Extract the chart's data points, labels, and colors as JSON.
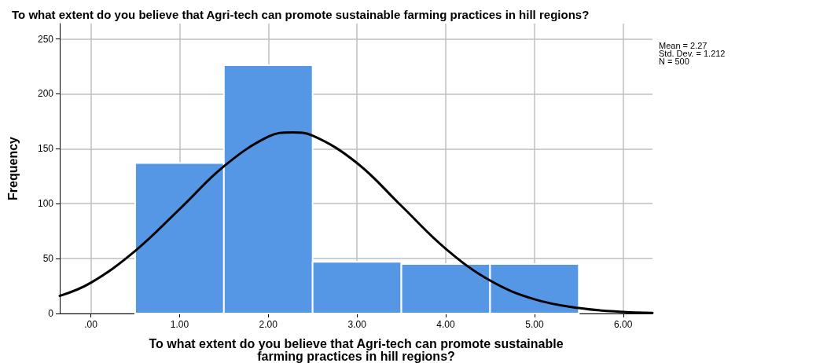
{
  "chart_data": {
    "type": "histogram",
    "title": "To what extent do you believe that Agri-tech can promote sustainable farming practices in hill regions?",
    "xlabel": "To what extent do you believe that Agri-tech can promote sustainable\nfarming practices in hill regions?",
    "ylabel": "Frequency",
    "bins": [
      0.5,
      1.5,
      2.5,
      3.5,
      4.5,
      5.5
    ],
    "values": [
      137,
      226,
      47,
      45,
      45
    ],
    "color": "#5596e5",
    "series": [
      {
        "type": "line",
        "color": "#000000",
        "x": [
          -0.35,
          0,
          0.5,
          1,
          1.5,
          2,
          2.27,
          2.5,
          3,
          3.5,
          4,
          4.5,
          5,
          5.5,
          6,
          6.33
        ],
        "values": [
          16,
          28,
          57,
          95,
          134,
          161,
          165,
          162,
          137,
          98,
          59,
          30,
          13,
          5,
          1.4,
          0.6
        ]
      }
    ],
    "xlim": [
      -0.35,
      6.33
    ],
    "xticks": [
      {
        "value": 0,
        "label": ".00"
      },
      {
        "value": 1,
        "label": "1.00"
      },
      {
        "value": 2,
        "label": "2.00"
      },
      {
        "value": 3,
        "label": "3.00"
      },
      {
        "value": 4,
        "label": "4.00"
      },
      {
        "value": 5,
        "label": "5.00"
      },
      {
        "value": 6,
        "label": "6.00"
      }
    ],
    "ylim": [
      0,
      264
    ],
    "yticks": [
      0,
      50,
      100,
      150,
      200,
      250
    ],
    "grid": true,
    "legend": false,
    "marker": "none",
    "annotations": [
      "Mean = 2.27",
      "Std. Dev. = 1.212",
      "N = 500"
    ]
  }
}
